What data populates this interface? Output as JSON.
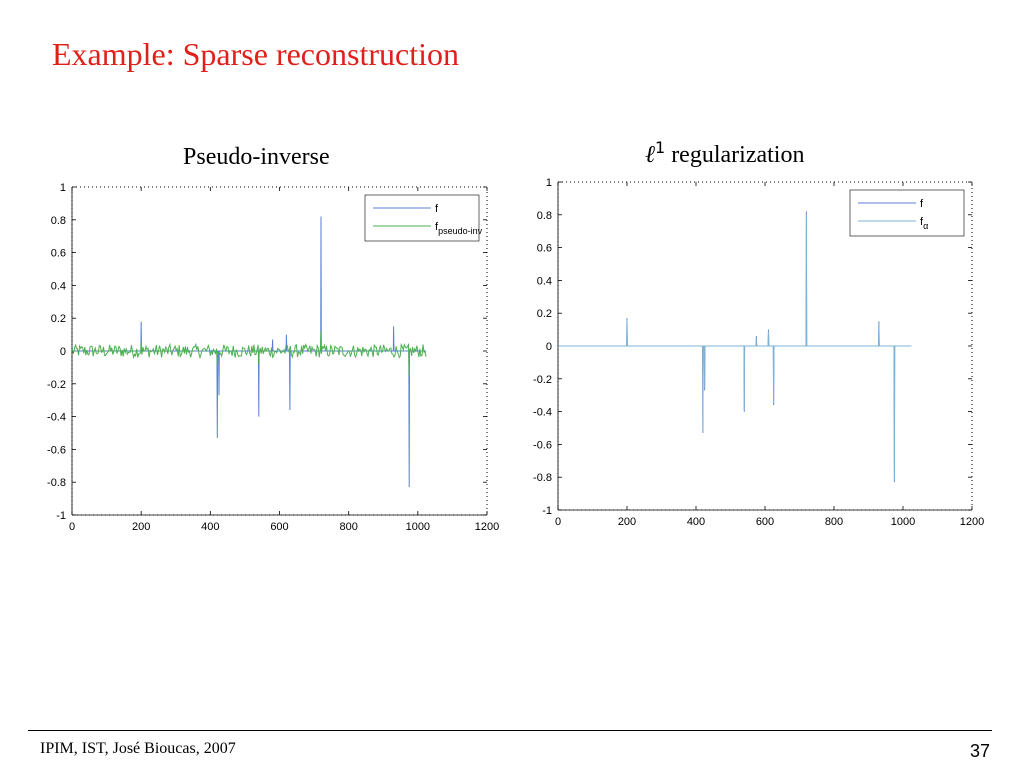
{
  "slide": {
    "title": "Example: Sparse reconstruction",
    "footer": "IPIM, IST, José Bioucas, 2007",
    "page_number": "37"
  },
  "colors": {
    "title": "#e0201b",
    "series_f": "#5b7fd6",
    "series_est": "#4caf50",
    "series_alpha": "#7fb3d5"
  },
  "chart_data": [
    {
      "type": "line",
      "title": "Pseudo-inverse",
      "xlim": [
        0,
        1200
      ],
      "ylim": [
        -1,
        1
      ],
      "xticks": [
        0,
        200,
        400,
        600,
        800,
        1000,
        1200
      ],
      "yticks": [
        -1,
        -0.8,
        -0.6,
        -0.4,
        -0.2,
        0,
        0.2,
        0.4,
        0.6,
        0.8,
        1
      ],
      "grid": false,
      "legend": "top-right",
      "series": [
        {
          "name": "f",
          "color": "#5b7fd6",
          "x_range": [
            1,
            1024
          ],
          "spikes": [
            [
              200,
              0.18
            ],
            [
              420,
              -0.53
            ],
            [
              425,
              -0.27
            ],
            [
              540,
              -0.4
            ],
            [
              580,
              0.07
            ],
            [
              620,
              0.1
            ],
            [
              630,
              -0.36
            ],
            [
              720,
              0.82
            ],
            [
              930,
              0.15
            ],
            [
              975,
              -0.83
            ]
          ]
        },
        {
          "name": "f_pseudo-inv",
          "color": "#4caf50",
          "x_range": [
            1,
            1024
          ],
          "noise_amplitude": 0.04,
          "spikes": [
            [
              200,
              0.05
            ],
            [
              420,
              -0.1
            ],
            [
              540,
              -0.08
            ],
            [
              720,
              0.12
            ],
            [
              975,
              -0.15
            ]
          ]
        }
      ]
    },
    {
      "type": "line",
      "title": "ℓ¹ regularization",
      "xlim": [
        0,
        1200
      ],
      "ylim": [
        -1,
        1
      ],
      "xticks": [
        0,
        200,
        400,
        600,
        800,
        1000,
        1200
      ],
      "yticks": [
        -1,
        -0.8,
        -0.6,
        -0.4,
        -0.2,
        0,
        0.2,
        0.4,
        0.6,
        0.8,
        1
      ],
      "grid": false,
      "legend": "top-right",
      "series": [
        {
          "name": "f",
          "color": "#5b7fd6",
          "x_range": [
            1,
            1024
          ],
          "spikes": [
            [
              200,
              0.17
            ],
            [
              420,
              -0.53
            ],
            [
              425,
              -0.27
            ],
            [
              540,
              -0.4
            ],
            [
              575,
              0.06
            ],
            [
              610,
              0.1
            ],
            [
              625,
              -0.36
            ],
            [
              720,
              0.82
            ],
            [
              930,
              0.15
            ],
            [
              975,
              -0.83
            ]
          ]
        },
        {
          "name": "f_α",
          "color": "#7fb3d5",
          "x_range": [
            1,
            1024
          ],
          "spikes": [
            [
              200,
              0.16
            ],
            [
              420,
              -0.52
            ],
            [
              425,
              -0.26
            ],
            [
              540,
              -0.39
            ],
            [
              575,
              0.05
            ],
            [
              610,
              0.09
            ],
            [
              625,
              -0.35
            ],
            [
              720,
              0.81
            ],
            [
              930,
              0.14
            ],
            [
              975,
              -0.82
            ]
          ]
        }
      ]
    }
  ]
}
